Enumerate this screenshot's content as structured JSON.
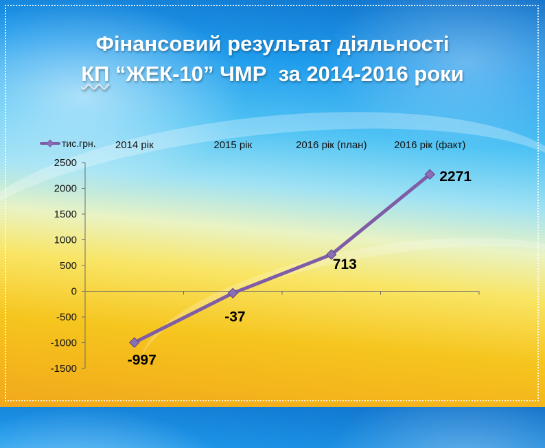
{
  "slide": {
    "title_line1": "Фінансовий результат діяльності",
    "title_line2_prefix": "КП",
    "title_line2_rest": " “ЖЕК-10” ЧМР  за 2014-2016 роки"
  },
  "colors": {
    "series_line": "#7e5ca6",
    "marker_fill": "#8b6fb5",
    "axis": "#6a6a6a"
  },
  "chart_data": {
    "type": "line",
    "title": "",
    "categories": [
      "2014 рік",
      "2015 рік",
      "2016 рік (план)",
      "2016 рік (факт)"
    ],
    "series": [
      {
        "name": "тис.грн.",
        "values": [
          -997,
          -37,
          713,
          2271
        ]
      }
    ],
    "data_labels": [
      "-997",
      "-37",
      "713",
      "2271"
    ],
    "y_ticks": [
      "2500",
      "2000",
      "1500",
      "1000",
      "500",
      "0",
      "-500",
      "-1000",
      "-1500"
    ],
    "ylim": [
      -1500,
      2500
    ],
    "y_step": 500,
    "grid": false,
    "legend_position": "top-left",
    "category_labels_position": "top",
    "marker": "diamond"
  }
}
